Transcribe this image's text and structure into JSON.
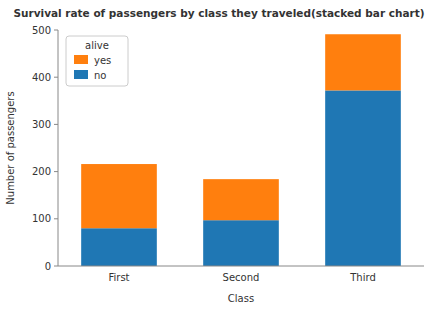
{
  "chart_data": {
    "type": "bar",
    "stacked": true,
    "title": "Survival rate of passengers by class they traveled(stacked bar chart)",
    "x_label": "Class",
    "y_label": "Number of passengers",
    "categories": [
      "First",
      "Second",
      "Third"
    ],
    "series": [
      {
        "name": "no",
        "color": "#1f77b4",
        "values": [
          80,
          97,
          372
        ]
      },
      {
        "name": "yes",
        "color": "#ff7f0e",
        "values": [
          136,
          87,
          119
        ]
      }
    ],
    "ylim": [
      0,
      500
    ],
    "yticks": [
      0,
      100,
      200,
      300,
      400,
      500
    ],
    "legend": "upper left",
    "legend_title": "alive"
  }
}
